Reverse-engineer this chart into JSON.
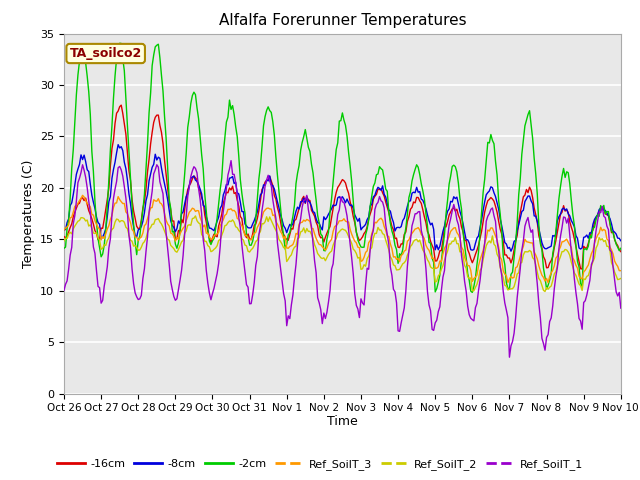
{
  "title": "Alfalfa Forerunner Temperatures",
  "ylabel": "Temperatures (C)",
  "xlabel": "Time",
  "annotation": "TA_soilco2",
  "ylim": [
    0,
    35
  ],
  "bg_color": "#f0f0f0",
  "legend_entries": [
    "-16cm",
    "-8cm",
    "-2cm",
    "Ref_SoilT_3",
    "Ref_SoilT_2",
    "Ref_SoilT_1"
  ],
  "line_colors": [
    "#dd0000",
    "#0000dd",
    "#00cc00",
    "#ff9900",
    "#cccc00",
    "#9900cc"
  ],
  "xtick_labels": [
    "Oct 26",
    "Oct 27",
    "Oct 28",
    "Oct 29",
    "Oct 30",
    "Oct 31",
    "Nov 1",
    "Nov 2",
    "Nov 3",
    "Nov 4",
    "Nov 5",
    "Nov 6",
    "Nov 7",
    "Nov 8",
    "Nov 9",
    "Nov 10"
  ],
  "ytick_values": [
    0,
    5,
    10,
    15,
    20,
    25,
    30,
    35
  ],
  "figsize": [
    6.4,
    4.8
  ],
  "dpi": 100
}
